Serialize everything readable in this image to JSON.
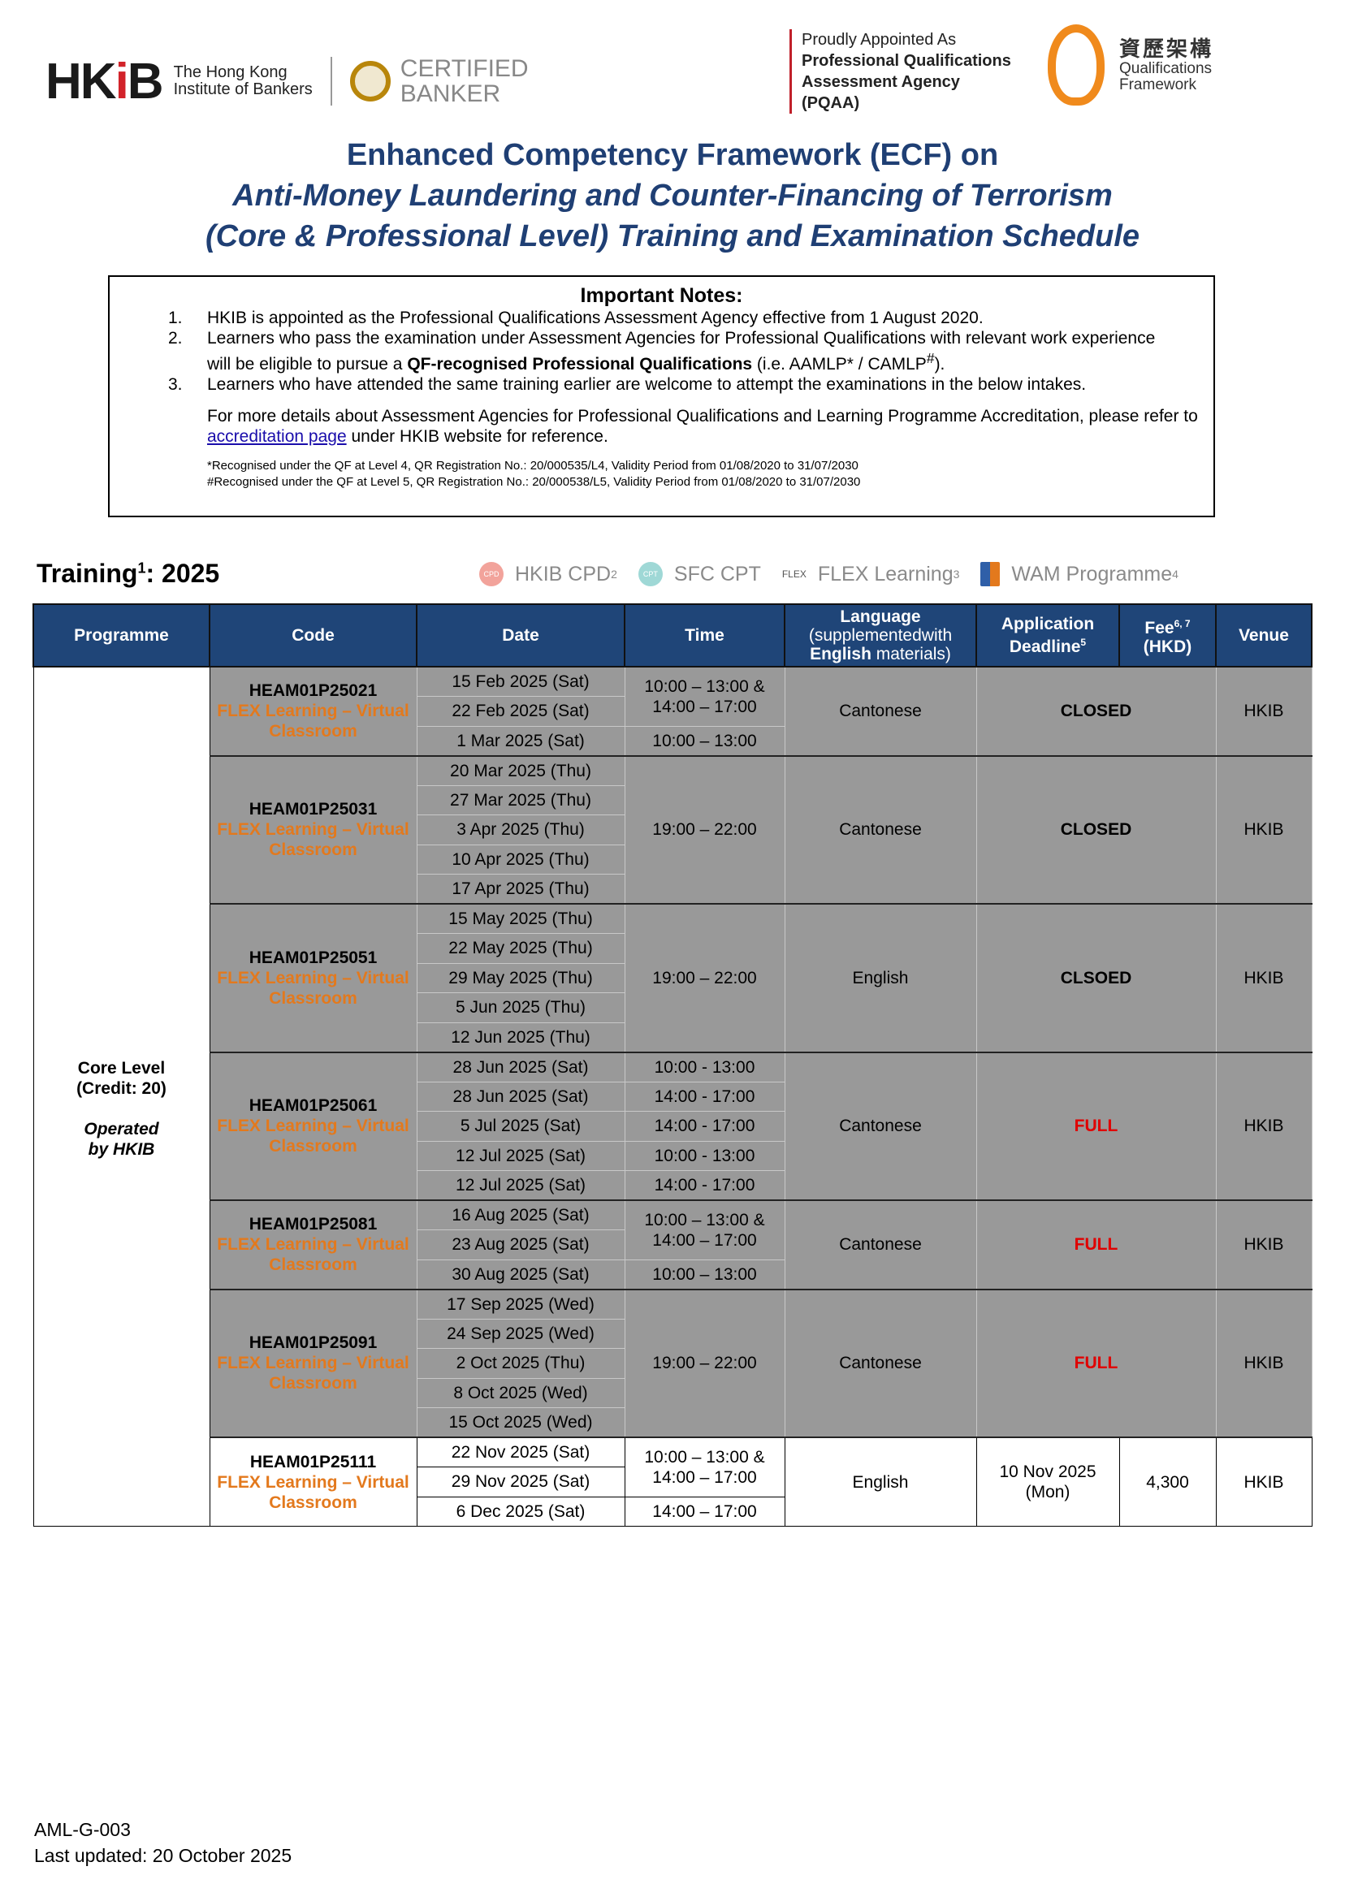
{
  "logos": {
    "hkib_mark": "HKiB",
    "hkib_name_1": "The Hong Kong",
    "hkib_name_2": "Institute of Bankers",
    "certified_1": "CERTIFIED",
    "certified_2": "BANKER",
    "pqaa_1": "Proudly Appointed As",
    "pqaa_2": "Professional Qualifications",
    "pqaa_3": "Assessment Agency",
    "pqaa_4": "(PQAA)",
    "qf_zh": "資歷架構",
    "qf_1": "Qualifications",
    "qf_2": "Framework"
  },
  "title": {
    "line1": "Enhanced Competency Framework (ECF) on",
    "line2": "Anti-Money Laundering and Counter-Financing of Terrorism",
    "line3": "(Core & Professional Level) Training and Examination Schedule"
  },
  "notes": {
    "heading": "Important Notes:",
    "items": [
      {
        "num": "1.",
        "text": "HKIB is appointed as the Professional Qualifications Assessment Agency effective from 1 August 2020."
      },
      {
        "num": "2.",
        "text_a": "Learners who pass the examination under Assessment Agencies for Professional Qualifications with relevant work experience will be eligible to pursue a ",
        "bold": "QF-recognised Professional Qualifications",
        "text_b": " (i.e. AAMLP* / CAMLP",
        "sup": "#",
        "text_c": ")."
      },
      {
        "num": "3.",
        "text": "Learners who have attended the same training earlier are welcome to attempt the examinations in the below intakes."
      }
    ],
    "more_a": "For more details about Assessment Agencies for Professional Qualifications and Learning Programme Accreditation, please refer to ",
    "more_link": "accreditation page",
    "more_b": " under HKIB website for reference.",
    "footnote_1": "*Recognised under the QF at Level 4, QR Registration No.: 20/000535/L4, Validity Period from 01/08/2020 to 31/07/2030",
    "footnote_2": "#Recognised under the QF at Level 5, QR Registration No.: 20/000538/L5, Validity Period from 01/08/2020 to 31/07/2030"
  },
  "training": {
    "label": "Training",
    "sup": "1",
    "year": ": 2025"
  },
  "legend": [
    {
      "icon": "cpd-icon",
      "icon_text": "CPD",
      "label": "HKIB CPD",
      "sup": "2",
      "color": "#f2a39b"
    },
    {
      "icon": "cpt-icon",
      "icon_text": "CPT",
      "label": "SFC CPT",
      "sup": "",
      "color": "#9fd8d6"
    },
    {
      "icon": "flex-icon",
      "icon_text": "FLEX",
      "label": "FLEX Learning",
      "sup": "3",
      "color": "#ffffff"
    },
    {
      "icon": "wam-icon",
      "icon_text": "",
      "label": "WAM Programme",
      "sup": "4",
      "color": "#2f5fa8"
    }
  ],
  "table": {
    "headers": {
      "programme": "Programme",
      "code": "Code",
      "date": "Date",
      "time": "Time",
      "language_1": "Language",
      "language_2": "(supplementedwith",
      "language_3": "English",
      "language_4": " materials)",
      "deadline": "Application Deadline",
      "deadline_sup": "5",
      "fee": "Fee",
      "fee_sup": "6, 7",
      "fee_unit": "(HKD)",
      "venue": "Venue"
    },
    "programme": {
      "level": "Core Level",
      "credit": "(Credit: 20)",
      "operated": "Operated",
      "by": "by HKIB"
    },
    "groups": [
      {
        "code": "HEAM01P25021",
        "mode": "FLEX Learning – Virtual Classroom",
        "dates": [
          "15 Feb 2025 (Sat)",
          "22 Feb 2025 (Sat)",
          "1 Mar 2025 (Sat)"
        ],
        "times": [
          {
            "text": "10:00 – 13:00 & 14:00 – 17:00",
            "span": 2
          },
          {
            "text": "10:00 – 13:00",
            "span": 1
          }
        ],
        "language": "Cantonese",
        "status": "CLOSED",
        "status_type": "closed",
        "venue": "HKIB",
        "open": false
      },
      {
        "code": "HEAM01P25031",
        "mode": "FLEX Learning – Virtual Classroom",
        "dates": [
          "20 Mar 2025 (Thu)",
          "27 Mar 2025 (Thu)",
          "3 Apr 2025 (Thu)",
          "10 Apr 2025 (Thu)",
          "17 Apr 2025 (Thu)"
        ],
        "times": [
          {
            "text": "19:00 – 22:00",
            "span": 5
          }
        ],
        "language": "Cantonese",
        "status": "CLOSED",
        "status_type": "closed",
        "venue": "HKIB",
        "open": false
      },
      {
        "code": "HEAM01P25051",
        "mode": "FLEX Learning – Virtual Classroom",
        "dates": [
          "15 May 2025 (Thu)",
          "22 May 2025 (Thu)",
          "29 May 2025 (Thu)",
          "5 Jun 2025 (Thu)",
          "12 Jun 2025 (Thu)"
        ],
        "times": [
          {
            "text": "19:00 – 22:00",
            "span": 5
          }
        ],
        "language": "English",
        "status": "CLSOED",
        "status_type": "closed",
        "venue": "HKIB",
        "open": false
      },
      {
        "code": "HEAM01P25061",
        "mode": "FLEX Learning – Virtual Classroom",
        "dates": [
          "28 Jun 2025 (Sat)",
          "28 Jun 2025 (Sat)",
          "5 Jul 2025 (Sat)",
          "12 Jul 2025 (Sat)",
          "12 Jul 2025 (Sat)"
        ],
        "times": [
          {
            "text": "10:00 - 13:00",
            "span": 1
          },
          {
            "text": "14:00 - 17:00",
            "span": 1
          },
          {
            "text": "14:00 - 17:00",
            "span": 1
          },
          {
            "text": "10:00 - 13:00",
            "span": 1
          },
          {
            "text": "14:00 - 17:00",
            "span": 1
          }
        ],
        "language": "Cantonese",
        "status": "FULL",
        "status_type": "full",
        "venue": "HKIB",
        "open": false
      },
      {
        "code": "HEAM01P25081",
        "mode": "FLEX Learning – Virtual Classroom",
        "dates": [
          "16 Aug 2025 (Sat)",
          "23 Aug 2025 (Sat)",
          "30 Aug 2025 (Sat)"
        ],
        "times": [
          {
            "text": "10:00 – 13:00 & 14:00 – 17:00",
            "span": 2
          },
          {
            "text": "10:00 – 13:00",
            "span": 1
          }
        ],
        "language": "Cantonese",
        "status": "FULL",
        "status_type": "full",
        "venue": "HKIB",
        "open": false
      },
      {
        "code": "HEAM01P25091",
        "mode": "FLEX Learning – Virtual Classroom",
        "dates": [
          "17 Sep 2025 (Wed)",
          "24 Sep 2025 (Wed)",
          "2 Oct 2025 (Thu)",
          "8 Oct 2025 (Wed)",
          "15 Oct 2025 (Wed)"
        ],
        "times": [
          {
            "text": "19:00 – 22:00",
            "span": 5
          }
        ],
        "language": "Cantonese",
        "status": "FULL",
        "status_type": "full",
        "venue": "HKIB",
        "open": false
      },
      {
        "code": "HEAM01P25111",
        "mode": "FLEX Learning – Virtual Classroom",
        "dates": [
          "22 Nov 2025 (Sat)",
          "29 Nov 2025 (Sat)",
          "6 Dec 2025 (Sat)"
        ],
        "times": [
          {
            "text": "10:00 – 13:00 & 14:00 – 17:00",
            "span": 2
          },
          {
            "text": "14:00 – 17:00",
            "span": 1
          }
        ],
        "language": "English",
        "deadline": "10 Nov 2025 (Mon)",
        "fee": "4,300",
        "venue": "HKIB",
        "open": true
      }
    ]
  },
  "footer": {
    "doc_code": "AML-G-003",
    "updated": "Last updated: 20 October 2025"
  },
  "colors": {
    "title_blue": "#1f3f74",
    "header_blue": "#1f4578",
    "mode_orange": "#e3791d",
    "full_red": "#e00000",
    "closed_gray": "#999999"
  }
}
